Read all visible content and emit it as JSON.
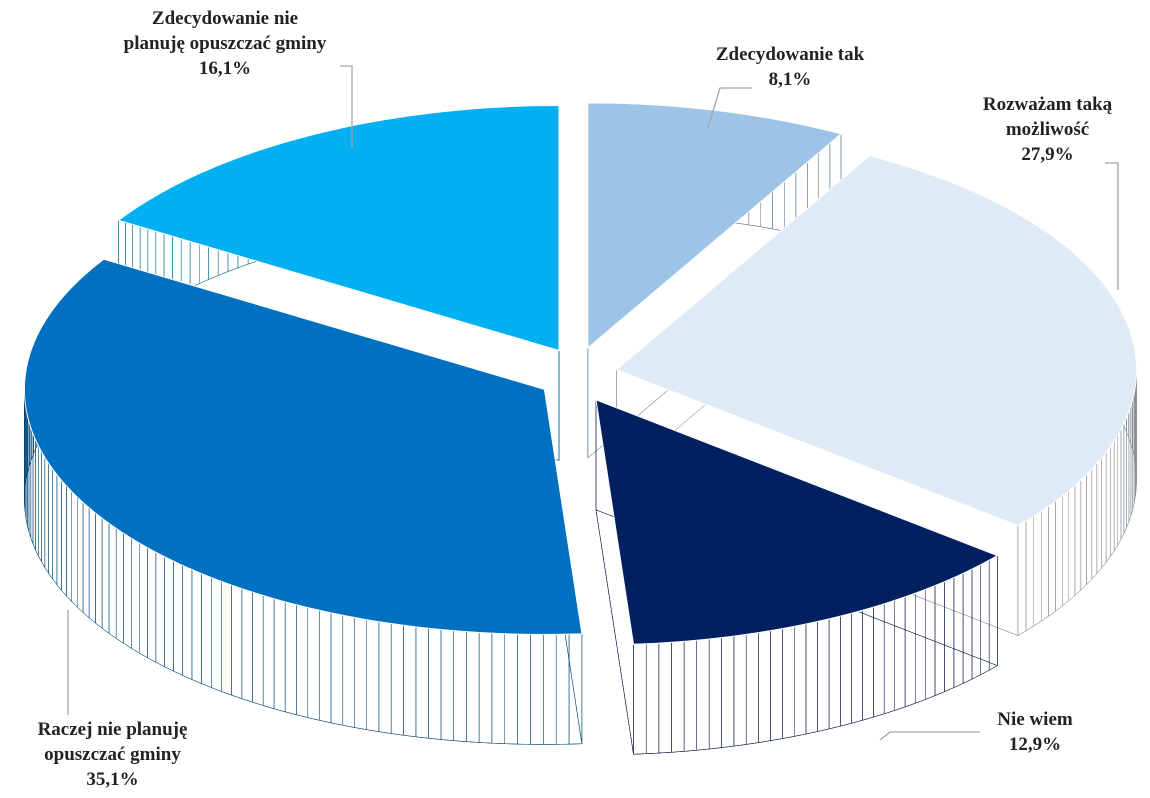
{
  "chart_data": {
    "type": "pie3d",
    "categories": [
      "Zdecydowanie tak",
      "Rozważam taką możliwość",
      "Nie wiem",
      "Raczej nie planuję opuszczać gminy",
      "Zdecydowanie nie planuję opuszczać gminy"
    ],
    "values": [
      8.1,
      27.9,
      12.9,
      35.1,
      16.1
    ],
    "value_labels": [
      "8,1%",
      "27,9%",
      "12,9%",
      "35,1%",
      "16,1%"
    ],
    "colors": [
      "#9dc3e6",
      "#deeaf6",
      "#002060",
      "#0070c0",
      "#00b0f0"
    ]
  }
}
